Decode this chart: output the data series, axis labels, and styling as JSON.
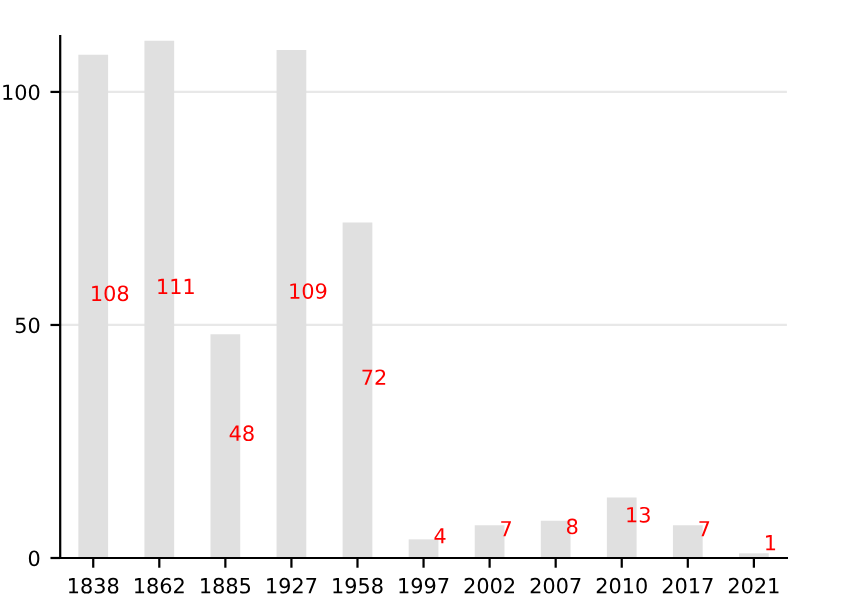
{
  "chart_data": {
    "type": "bar",
    "categories": [
      "1838",
      "1862",
      "1885",
      "1927",
      "1958",
      "1997",
      "2002",
      "2007",
      "2010",
      "2017",
      "2021"
    ],
    "values": [
      108,
      111,
      48,
      109,
      72,
      4,
      7,
      8,
      13,
      7,
      1
    ],
    "color": "#e0e0e0",
    "data_labels": true,
    "ylim": [
      0,
      112
    ],
    "yticks": [
      0,
      50,
      100
    ],
    "grid": "y"
  }
}
